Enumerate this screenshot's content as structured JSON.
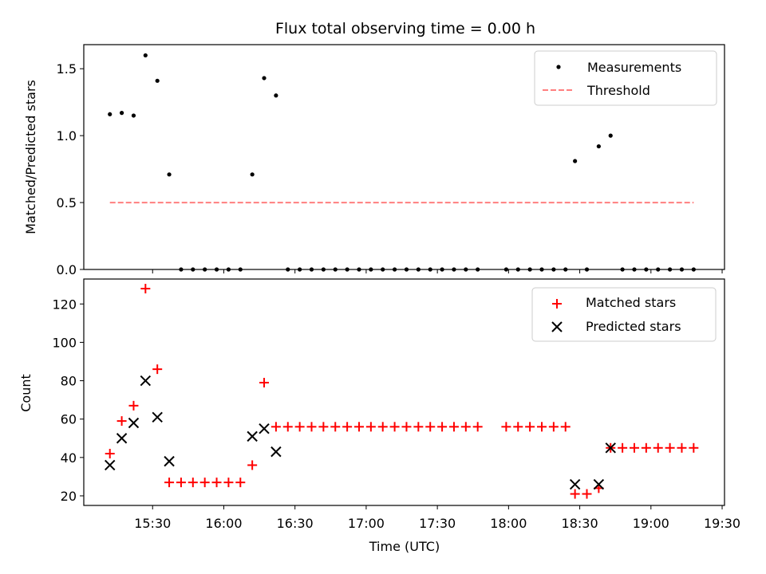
{
  "title": "Flux total observing time = 0.00 h",
  "colors": {
    "measurements": "#000000",
    "threshold": "#ff7f7f",
    "matched": "#ff0000",
    "predicted": "#000000"
  },
  "chart_data": [
    {
      "type": "scatter",
      "title": "Flux total observing time = 0.00 h",
      "xlabel": "",
      "ylabel": "Matched/Predicted stars",
      "ylim": [
        0,
        1.68
      ],
      "yticks": [
        0.0,
        0.5,
        1.0,
        1.5
      ],
      "ytick_labels": [
        "0.0",
        "0.5",
        "1.0",
        "1.5"
      ],
      "legend_position": "top-right",
      "series": [
        {
          "name": "Measurements",
          "kind": "scatter",
          "x": [
            "15:12",
            "15:17",
            "15:22",
            "15:27",
            "15:32",
            "15:37",
            "15:42",
            "15:47",
            "15:52",
            "15:57",
            "16:02",
            "16:07",
            "16:12",
            "16:17",
            "16:22",
            "16:27",
            "16:32",
            "16:37",
            "16:42",
            "16:47",
            "16:52",
            "16:57",
            "17:02",
            "17:07",
            "17:12",
            "17:17",
            "17:22",
            "17:27",
            "17:32",
            "17:37",
            "17:42",
            "17:47",
            "17:59",
            "18:04",
            "18:09",
            "18:14",
            "18:19",
            "18:24",
            "18:28",
            "18:33",
            "18:38",
            "18:43",
            "18:48",
            "18:53",
            "18:58",
            "19:03",
            "19:08",
            "19:13",
            "19:18"
          ],
          "y": [
            1.16,
            1.17,
            1.15,
            1.6,
            1.41,
            0.71,
            0,
            0,
            0,
            0,
            0,
            0,
            0.71,
            1.43,
            1.3,
            0,
            0,
            0,
            0,
            0,
            0,
            0,
            0,
            0,
            0,
            0,
            0,
            0,
            0,
            0,
            0,
            0,
            0,
            0,
            0,
            0,
            0,
            0,
            0.81,
            0,
            0.92,
            1.0,
            0,
            0,
            0,
            0,
            0,
            0,
            0
          ]
        },
        {
          "name": "Threshold",
          "kind": "line",
          "x": [
            "15:12",
            "19:18"
          ],
          "y": [
            0.5,
            0.5
          ]
        }
      ]
    },
    {
      "type": "scatter",
      "xlabel": "Time (UTC)",
      "ylabel": "Count",
      "ylim": [
        15,
        133
      ],
      "yticks": [
        20,
        40,
        60,
        80,
        100,
        120
      ],
      "ytick_labels": [
        "20",
        "40",
        "60",
        "80",
        "100",
        "120"
      ],
      "xlim": [
        "15:01",
        "19:31"
      ],
      "xticks": [
        "15:30",
        "16:00",
        "16:30",
        "17:00",
        "17:30",
        "18:00",
        "18:30",
        "19:00",
        "19:30"
      ],
      "legend_position": "top-right",
      "series": [
        {
          "name": "Matched stars",
          "marker": "+",
          "x": [
            "15:12",
            "15:17",
            "15:22",
            "15:27",
            "15:32",
            "15:37",
            "15:42",
            "15:47",
            "15:52",
            "15:57",
            "16:02",
            "16:07",
            "16:12",
            "16:17",
            "16:22",
            "16:27",
            "16:32",
            "16:37",
            "16:42",
            "16:47",
            "16:52",
            "16:57",
            "17:02",
            "17:07",
            "17:12",
            "17:17",
            "17:22",
            "17:27",
            "17:32",
            "17:37",
            "17:42",
            "17:47",
            "17:59",
            "18:04",
            "18:09",
            "18:14",
            "18:19",
            "18:24",
            "18:28",
            "18:33",
            "18:38",
            "18:43",
            "18:48",
            "18:53",
            "18:58",
            "19:03",
            "19:08",
            "19:13",
            "19:18"
          ],
          "y": [
            42,
            59,
            67,
            128,
            86,
            27,
            27,
            27,
            27,
            27,
            27,
            27,
            36,
            79,
            56,
            56,
            56,
            56,
            56,
            56,
            56,
            56,
            56,
            56,
            56,
            56,
            56,
            56,
            56,
            56,
            56,
            56,
            56,
            56,
            56,
            56,
            56,
            56,
            21,
            21,
            24,
            45,
            45,
            45,
            45,
            45,
            45,
            45,
            45
          ]
        },
        {
          "name": "Predicted stars",
          "marker": "x",
          "x": [
            "15:12",
            "15:17",
            "15:22",
            "15:27",
            "15:32",
            "15:37",
            "16:12",
            "16:17",
            "16:22",
            "18:28",
            "18:38",
            "18:43"
          ],
          "y": [
            36,
            50,
            58,
            80,
            61,
            38,
            51,
            55,
            43,
            26,
            26,
            45
          ]
        }
      ]
    }
  ]
}
